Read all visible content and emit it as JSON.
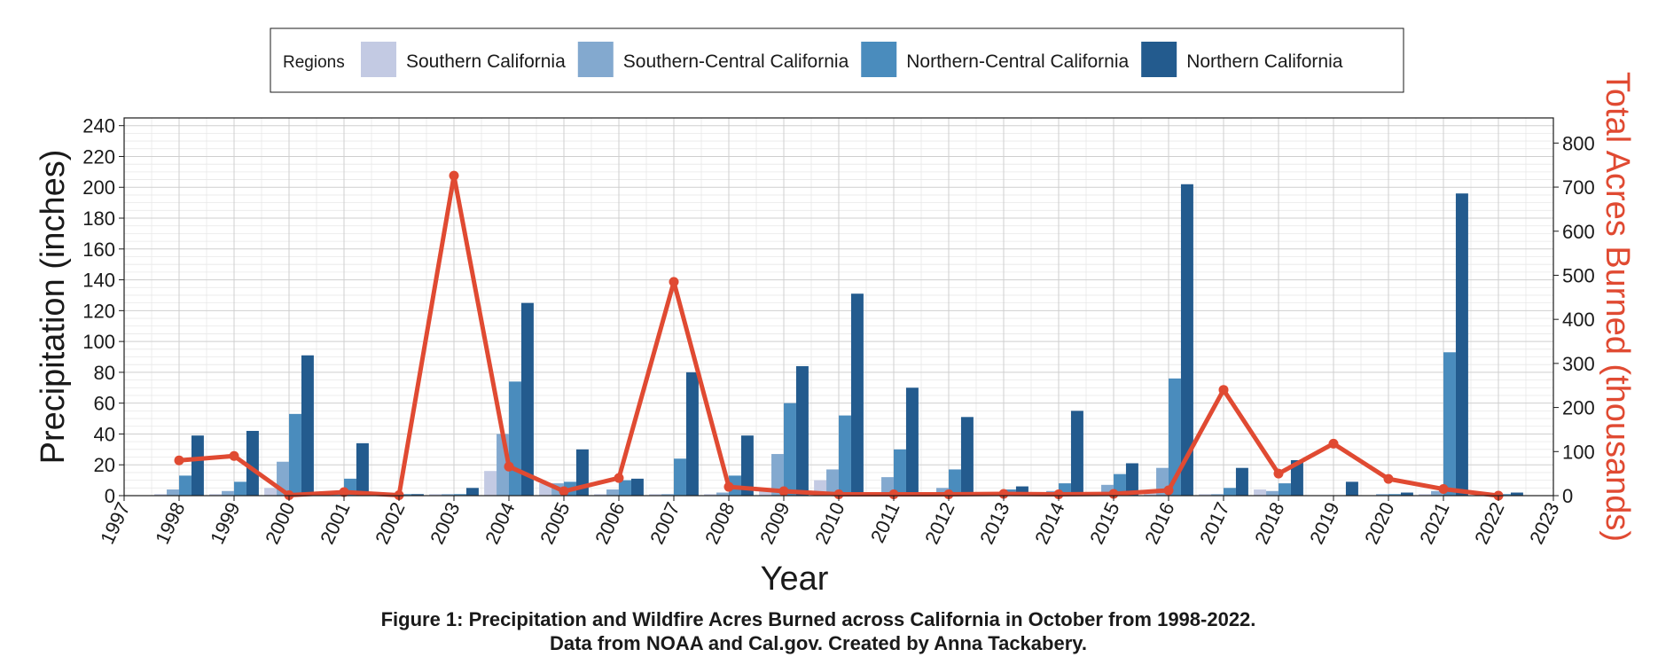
{
  "chart_data": {
    "type": "bar",
    "legend": {
      "title": "Regions",
      "placement": "top-center"
    },
    "x": [
      1998,
      1999,
      2000,
      2001,
      2002,
      2003,
      2004,
      2005,
      2006,
      2007,
      2008,
      2009,
      2010,
      2011,
      2012,
      2013,
      2014,
      2015,
      2016,
      2017,
      2018,
      2019,
      2020,
      2021,
      2022
    ],
    "xlim": [
      1997,
      2023
    ],
    "xticks": [
      1997,
      1998,
      1999,
      2000,
      2001,
      2002,
      2003,
      2004,
      2005,
      2006,
      2007,
      2008,
      2009,
      2010,
      2011,
      2012,
      2013,
      2014,
      2015,
      2016,
      2017,
      2018,
      2019,
      2020,
      2021,
      2022,
      2023
    ],
    "xlabel": "Year",
    "ylabel": "Precipitation (inches)",
    "ylim": [
      0,
      245
    ],
    "yticks": [
      0,
      20,
      40,
      60,
      80,
      100,
      120,
      140,
      160,
      180,
      200,
      220,
      240
    ],
    "y2label": "Total Acres Burned (thousands)",
    "y2lim": [
      0,
      857
    ],
    "y2ticks": [
      0,
      100,
      200,
      300,
      400,
      500,
      600,
      700,
      800
    ],
    "grid": true,
    "series": [
      {
        "name": "Southern California",
        "type": "bar",
        "color": "#c3cae3",
        "values": [
          1,
          1,
          5,
          1,
          0,
          1,
          16,
          8,
          1,
          1,
          1,
          3,
          10,
          2,
          1,
          1,
          1,
          2,
          3,
          1,
          4,
          0,
          0,
          1,
          0
        ]
      },
      {
        "name": "Southern-Central California",
        "type": "bar",
        "color": "#83a9cf",
        "values": [
          4,
          3,
          22,
          3,
          0,
          1,
          40,
          8,
          4,
          1,
          2,
          27,
          17,
          12,
          5,
          2,
          3,
          7,
          18,
          1,
          3,
          0,
          1,
          3,
          0
        ]
      },
      {
        "name": "Northern-Central California",
        "type": "bar",
        "color": "#4a8cbd",
        "values": [
          13,
          9,
          53,
          11,
          1,
          1,
          74,
          9,
          10,
          24,
          13,
          60,
          52,
          30,
          17,
          4,
          8,
          14,
          76,
          5,
          8,
          0,
          1,
          93,
          1
        ]
      },
      {
        "name": "Northern California",
        "type": "bar",
        "color": "#235b8e",
        "values": [
          39,
          42,
          91,
          34,
          1,
          5,
          125,
          30,
          11,
          80,
          39,
          84,
          131,
          70,
          51,
          6,
          55,
          21,
          202,
          18,
          23,
          9,
          2,
          196,
          2
        ]
      },
      {
        "name": "Total Acres Burned",
        "type": "line",
        "axis": "right",
        "color": "#e04a32",
        "values": [
          80,
          90,
          1,
          8,
          1,
          726,
          66,
          10,
          40,
          485,
          20,
          10,
          3,
          3,
          3,
          4,
          3,
          4,
          12,
          240,
          50,
          118,
          38,
          15,
          0
        ]
      }
    ]
  },
  "caption": {
    "line1": "Figure 1: Precipitation and Wildfire Acres Burned across California in October from 1998-2022.",
    "line2": "Data from NOAA and Cal.gov. Created by Anna Tackabery."
  }
}
